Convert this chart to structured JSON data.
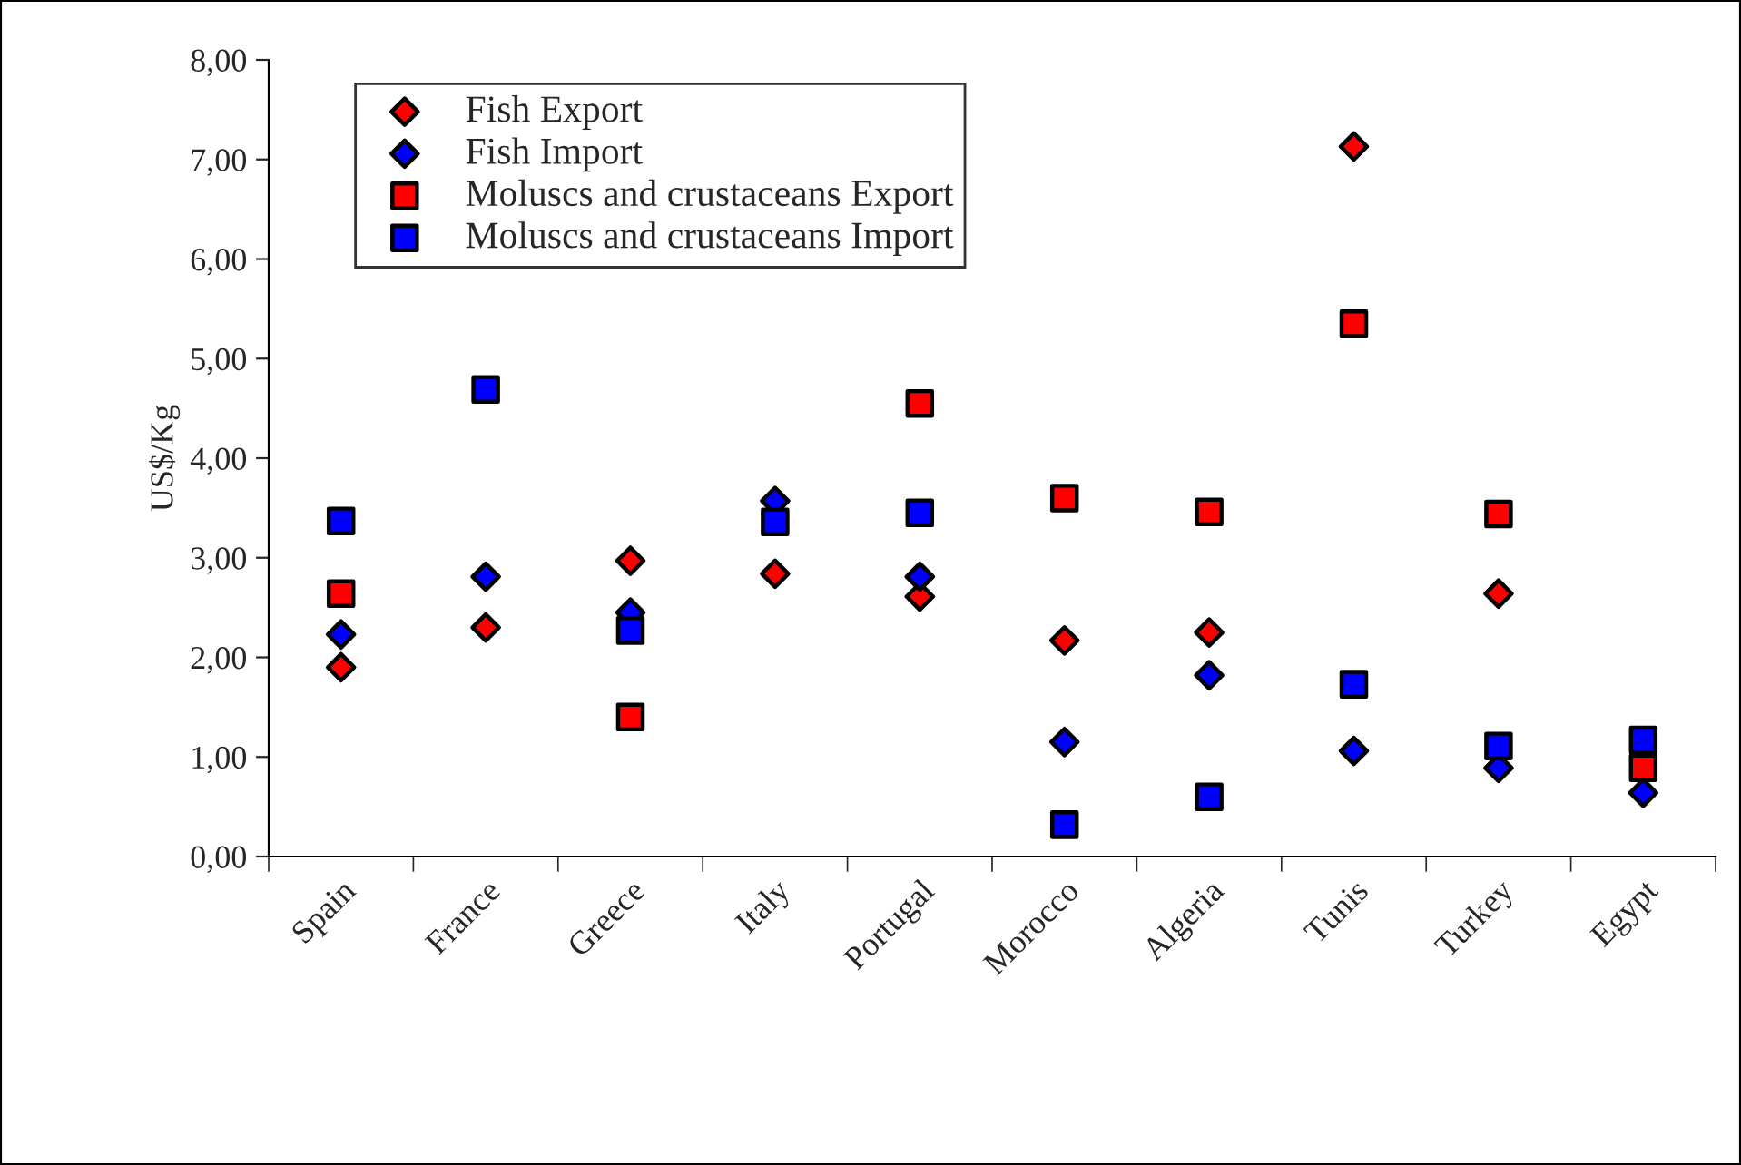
{
  "chart_data": {
    "type": "scatter",
    "ylabel": "US$/Kg",
    "categories": [
      "Spain",
      "France",
      "Greece",
      "Italy",
      "Portugal",
      "Morocco",
      "Algeria",
      "Tunis",
      "Turkey",
      "Egypt"
    ],
    "series": [
      {
        "name": "Fish Export",
        "color": "#ff0000",
        "marker": "diamond",
        "values": [
          1.9,
          2.3,
          2.97,
          2.84,
          2.61,
          2.17,
          2.25,
          7.13,
          2.64,
          null
        ]
      },
      {
        "name": "Fish Import",
        "color": "#0000ff",
        "marker": "diamond",
        "values": [
          2.23,
          2.81,
          2.45,
          3.57,
          2.81,
          1.15,
          1.82,
          1.06,
          0.89,
          0.64
        ]
      },
      {
        "name": "Moluscs and crustaceans Export",
        "color": "#ff0000",
        "marker": "square",
        "values": [
          2.64,
          null,
          1.4,
          null,
          4.55,
          3.6,
          3.46,
          5.35,
          3.44,
          0.89
        ]
      },
      {
        "name": "Moluscs and crustaceans Import",
        "color": "#0000ff",
        "marker": "square",
        "values": [
          3.37,
          4.69,
          2.27,
          3.36,
          3.45,
          0.32,
          0.6,
          1.73,
          1.11,
          1.17
        ]
      }
    ],
    "ylim": [
      0,
      8
    ],
    "yticks": [
      {
        "value": 0,
        "label": "0,00"
      },
      {
        "value": 1,
        "label": "1,00"
      },
      {
        "value": 2,
        "label": "2,00"
      },
      {
        "value": 3,
        "label": "3,00"
      },
      {
        "value": 4,
        "label": "4,00"
      },
      {
        "value": 5,
        "label": "5,00"
      },
      {
        "value": 6,
        "label": "6,00"
      },
      {
        "value": 7,
        "label": "7,00"
      },
      {
        "value": 8,
        "label": "8,00"
      }
    ],
    "grid": false,
    "legend": "top left"
  }
}
